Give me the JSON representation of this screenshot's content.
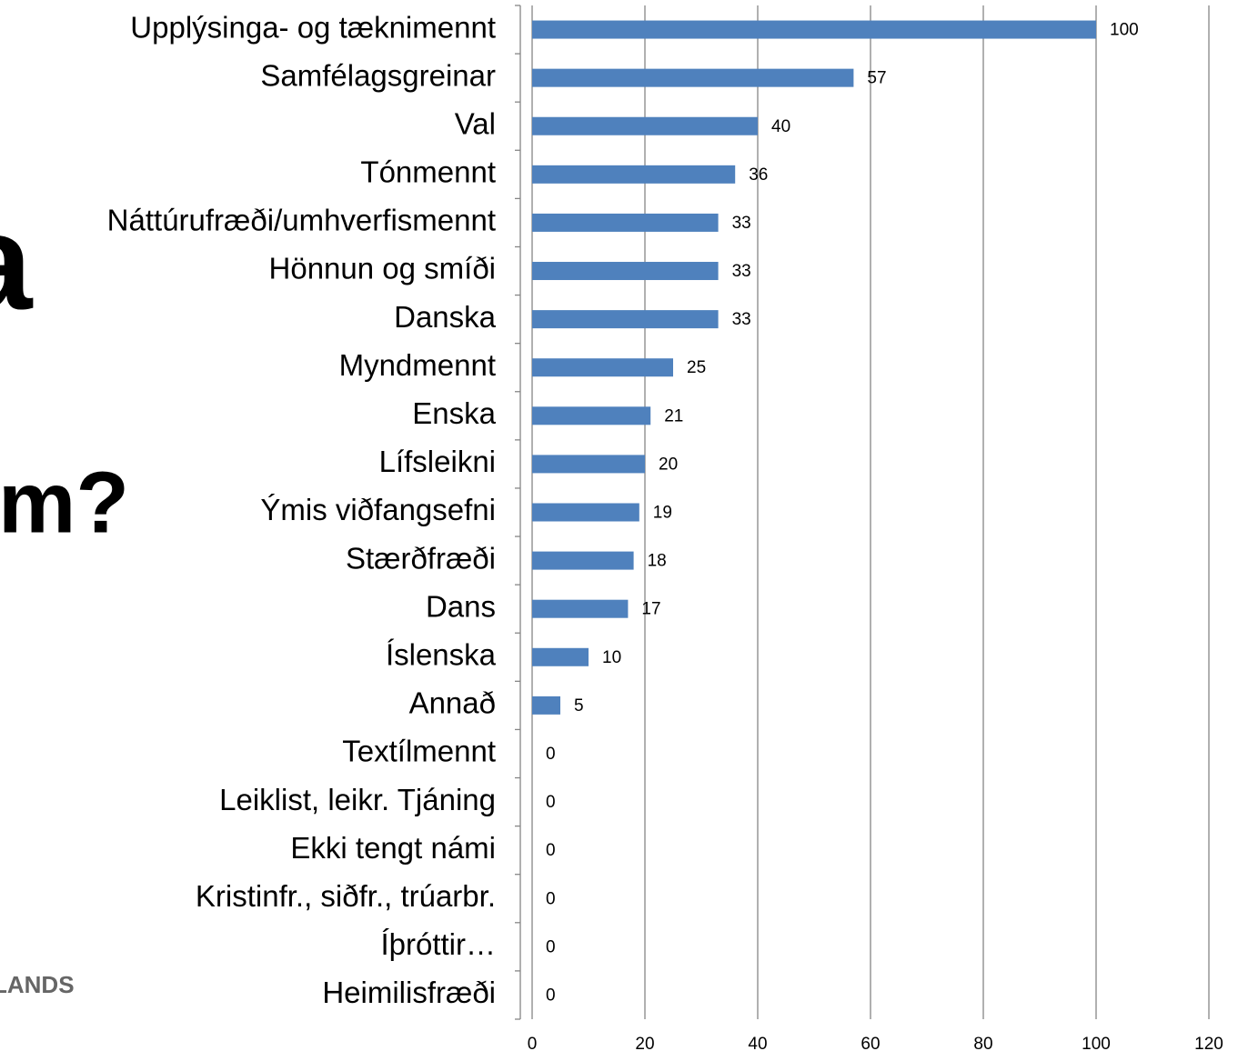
{
  "chart_data": {
    "type": "barh",
    "annotations": [
      "a",
      "m?",
      "LANDS"
    ],
    "categories": [
      "Upplýsinga- og tæknimennt",
      "Samfélagsgreinar",
      "Val",
      "Tónmennt",
      "Náttúrufræði/umhverfismennt",
      "Hönnun og smíði",
      "Danska",
      "Myndmennt",
      "Enska",
      "Lífsleikni",
      "Ýmis viðfangsefni",
      "Stærðfræði",
      "Dans",
      "Íslenska",
      "Annað",
      "Textílmennt",
      "Leiklist, leikr. Tjáning",
      "Ekki tengt námi",
      "Kristinfr., siðfr., trúarbr.",
      "Íþróttir…",
      "Heimilisfræði"
    ],
    "values": [
      100,
      57,
      40,
      36,
      33,
      33,
      33,
      25,
      21,
      20,
      19,
      18,
      17,
      10,
      5,
      0,
      0,
      0,
      0,
      0,
      0
    ],
    "color": "#4f81bd",
    "xlim": [
      0,
      120
    ],
    "xticks": [
      0,
      20,
      40,
      60,
      80,
      100,
      120
    ],
    "grid": true
  }
}
